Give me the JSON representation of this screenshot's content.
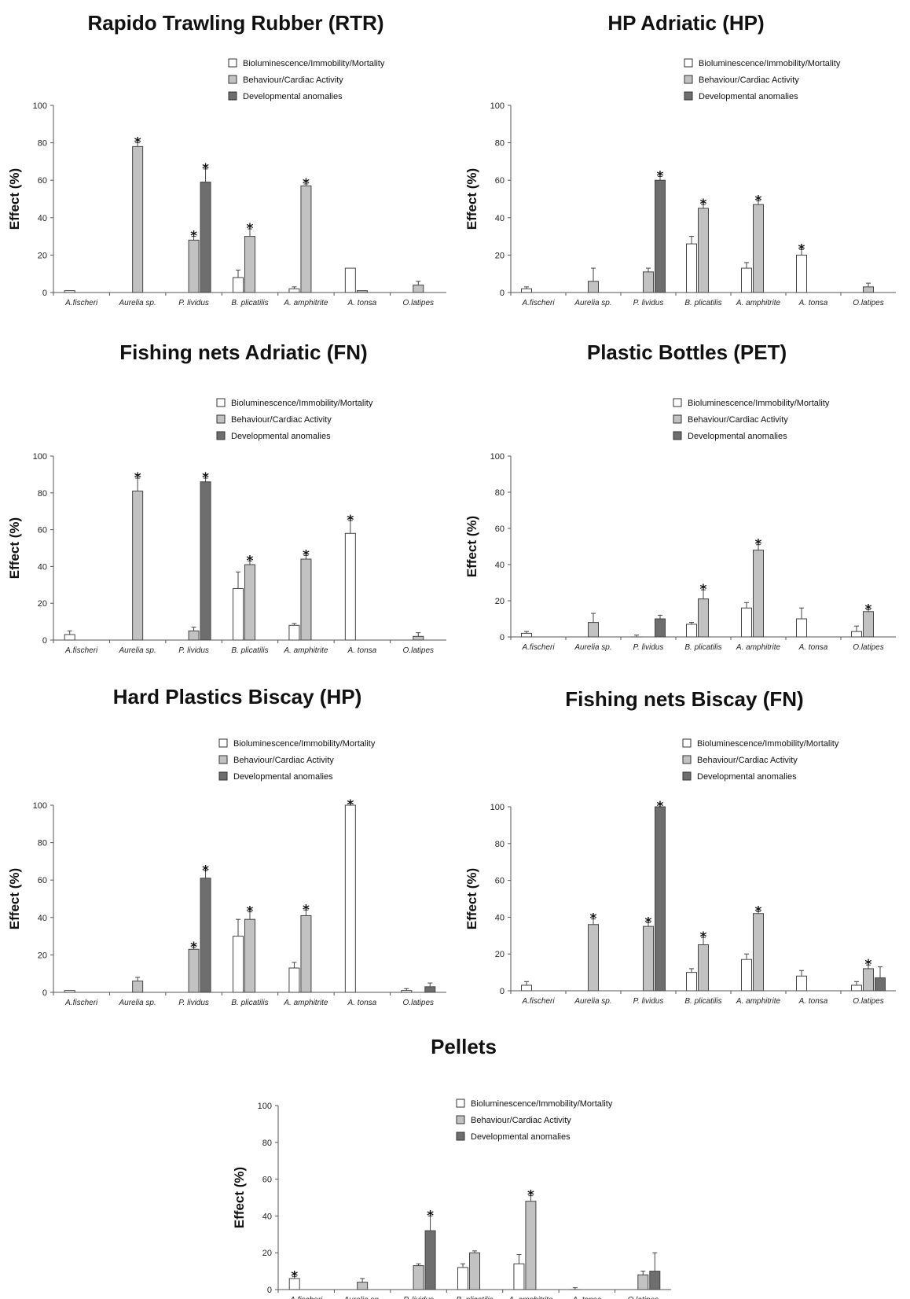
{
  "series_colors": [
    "#ffffff",
    "#c2c2c2",
    "#6e6e6e"
  ],
  "chart_data": [
    {
      "type": "bar",
      "title": "Rapido Trawling Rubber (RTR)",
      "ylabel": "Effect (%)",
      "ylim": [
        0,
        100
      ],
      "yticks": [
        0,
        20,
        40,
        60,
        80,
        100
      ],
      "legend_position": "top-right",
      "categories": [
        "A.fischeri",
        "Aurelia sp.",
        "P. lividus",
        "B. plicatilis",
        "A. amphitrite",
        "A. tonsa",
        "O.latipes"
      ],
      "series": [
        {
          "name": "Bioluminescence/Immobility/Mortality",
          "values": [
            1,
            null,
            null,
            8,
            2,
            13,
            null
          ],
          "errors": [
            0,
            null,
            null,
            4,
            1,
            0,
            null
          ],
          "sig": [
            false,
            false,
            false,
            false,
            false,
            false,
            false
          ]
        },
        {
          "name": "Behaviour/Cardiac  Activity",
          "values": [
            null,
            78,
            28,
            30,
            57,
            1,
            4
          ],
          "errors": [
            null,
            2,
            2,
            4,
            1,
            0,
            2
          ],
          "sig": [
            false,
            true,
            true,
            true,
            true,
            false,
            false
          ]
        },
        {
          "name": "Developmental anomalies",
          "values": [
            null,
            null,
            59,
            null,
            null,
            null,
            null
          ],
          "errors": [
            null,
            null,
            7,
            null,
            null,
            null,
            null
          ],
          "sig": [
            false,
            false,
            true,
            false,
            false,
            false,
            false
          ]
        }
      ]
    },
    {
      "type": "bar",
      "title": "HP Adriatic (HP)",
      "ylabel": "Effect (%)",
      "ylim": [
        0,
        100
      ],
      "yticks": [
        0,
        20,
        40,
        60,
        80,
        100
      ],
      "legend_position": "top-right",
      "categories": [
        "A.fischeri",
        "Aurelia sp.",
        "P. lividus",
        "B. plicatilis",
        "A. amphitrite",
        "A. tonsa",
        "O.latipes"
      ],
      "series": [
        {
          "name": "Bioluminescence/Immobility/Mortality",
          "values": [
            2,
            null,
            null,
            26,
            13,
            20,
            null
          ],
          "errors": [
            1,
            null,
            null,
            4,
            3,
            3,
            null
          ],
          "sig": [
            false,
            false,
            false,
            false,
            false,
            true,
            false
          ]
        },
        {
          "name": "Behaviour/Cardiac  Activity",
          "values": [
            null,
            6,
            11,
            45,
            47,
            null,
            3
          ],
          "errors": [
            null,
            7,
            2,
            2,
            2,
            null,
            2
          ],
          "sig": [
            false,
            false,
            false,
            true,
            true,
            false,
            false
          ]
        },
        {
          "name": "Developmental anomalies",
          "values": [
            null,
            null,
            60,
            null,
            null,
            null,
            null
          ],
          "errors": [
            null,
            null,
            2,
            null,
            null,
            null,
            null
          ],
          "sig": [
            false,
            false,
            true,
            false,
            false,
            false,
            false
          ]
        }
      ]
    },
    {
      "type": "bar",
      "title": "Fishing nets Adriatic (FN)",
      "ylabel": "Effect (%)",
      "ylim": [
        0,
        100
      ],
      "yticks": [
        0,
        20,
        40,
        60,
        80,
        100
      ],
      "legend_position": "top-right",
      "categories": [
        "A.fischeri",
        "Aurelia sp.",
        "P. lividus",
        "B. plicatilis",
        "A. amphitrite",
        "A. tonsa",
        "O.latipes"
      ],
      "series": [
        {
          "name": "Bioluminescence/Immobility/Mortality",
          "values": [
            3,
            null,
            null,
            28,
            8,
            58,
            null
          ],
          "errors": [
            2,
            null,
            null,
            9,
            1,
            7,
            null
          ],
          "sig": [
            false,
            false,
            false,
            false,
            false,
            true,
            false
          ]
        },
        {
          "name": "Behaviour/Cardiac  Activity",
          "values": [
            null,
            81,
            5,
            41,
            44,
            null,
            2
          ],
          "errors": [
            null,
            7,
            2,
            2,
            2,
            null,
            2
          ],
          "sig": [
            false,
            true,
            false,
            true,
            true,
            false,
            false
          ]
        },
        {
          "name": "Developmental anomalies",
          "values": [
            null,
            null,
            86,
            null,
            null,
            null,
            null
          ],
          "errors": [
            null,
            null,
            2,
            null,
            null,
            null,
            null
          ],
          "sig": [
            false,
            false,
            true,
            false,
            false,
            false,
            false
          ]
        }
      ]
    },
    {
      "type": "bar",
      "title": "Plastic Bottles (PET)",
      "ylabel": "Effect (%)",
      "ylim": [
        0,
        100
      ],
      "yticks": [
        0,
        20,
        40,
        60,
        80,
        100
      ],
      "legend_position": "top-right",
      "categories": [
        "A.fischeri",
        "Aurelia sp.",
        "P. lividus",
        "B. plicatilis",
        "A. amphitrite",
        "A. tonsa",
        "O.latipes"
      ],
      "series": [
        {
          "name": "Bioluminescence/Immobility/Mortality",
          "values": [
            2,
            null,
            0,
            7,
            16,
            10,
            3
          ],
          "errors": [
            1,
            null,
            1,
            1,
            3,
            6,
            3
          ],
          "sig": [
            false,
            false,
            false,
            false,
            false,
            false,
            false
          ]
        },
        {
          "name": "Behaviour/Cardiac  Activity",
          "values": [
            null,
            8,
            null,
            21,
            48,
            null,
            14
          ],
          "errors": [
            null,
            5,
            null,
            5,
            3,
            null,
            1
          ],
          "sig": [
            false,
            false,
            false,
            true,
            true,
            false,
            true
          ]
        },
        {
          "name": "Developmental anomalies",
          "values": [
            null,
            null,
            10,
            null,
            null,
            null,
            null
          ],
          "errors": [
            null,
            null,
            2,
            null,
            null,
            null,
            null
          ],
          "sig": [
            false,
            false,
            false,
            false,
            false,
            false,
            false
          ]
        }
      ]
    },
    {
      "type": "bar",
      "title": "Hard Plastics Biscay (HP)",
      "ylabel": "Effect (%)",
      "ylim": [
        0,
        100
      ],
      "yticks": [
        0,
        20,
        40,
        60,
        80,
        100
      ],
      "legend_position": "top-right",
      "categories": [
        "A.fischeri",
        "Aurelia sp.",
        "P. lividus",
        "B. plicatilis",
        "A. amphitrite",
        "A. tonsa",
        "O.latipes"
      ],
      "series": [
        {
          "name": "Bioluminescence/Immobility/Mortality",
          "values": [
            1,
            null,
            null,
            30,
            13,
            100,
            1
          ],
          "errors": [
            0,
            null,
            null,
            9,
            3,
            0,
            1
          ],
          "sig": [
            false,
            false,
            false,
            false,
            false,
            true,
            false
          ]
        },
        {
          "name": "Behaviour/Cardiac  Activity",
          "values": [
            null,
            6,
            23,
            39,
            41,
            null,
            null
          ],
          "errors": [
            null,
            2,
            1,
            4,
            3,
            null,
            null
          ],
          "sig": [
            false,
            false,
            true,
            true,
            true,
            false,
            false
          ]
        },
        {
          "name": "Developmental anomalies",
          "values": [
            null,
            null,
            61,
            null,
            null,
            null,
            3
          ],
          "errors": [
            null,
            null,
            4,
            null,
            null,
            null,
            2
          ],
          "sig": [
            false,
            false,
            true,
            false,
            false,
            false,
            false
          ]
        }
      ]
    },
    {
      "type": "bar",
      "title": "Fishing nets Biscay (FN)",
      "ylabel": "Effect (%)",
      "ylim": [
        0,
        100
      ],
      "yticks": [
        0,
        20,
        40,
        60,
        80,
        100
      ],
      "legend_position": "top-right",
      "categories": [
        "A.fischeri",
        "Aurelia sp.",
        "P. lividus",
        "B. plicatilis",
        "A. amphitrite",
        "A. tonsa",
        "O.latipes"
      ],
      "series": [
        {
          "name": "Bioluminescence/Immobility/Mortality",
          "values": [
            3,
            null,
            null,
            10,
            17,
            8,
            3
          ],
          "errors": [
            2,
            null,
            null,
            2,
            3,
            3,
            2
          ],
          "sig": [
            false,
            false,
            false,
            false,
            false,
            false,
            false
          ]
        },
        {
          "name": "Behaviour/Cardiac  Activity",
          "values": [
            null,
            36,
            35,
            25,
            42,
            null,
            12
          ],
          "errors": [
            null,
            3,
            2,
            4,
            1,
            null,
            2
          ],
          "sig": [
            false,
            true,
            true,
            true,
            true,
            false,
            true
          ]
        },
        {
          "name": "Developmental anomalies",
          "values": [
            null,
            null,
            100,
            null,
            null,
            null,
            7
          ],
          "errors": [
            null,
            null,
            0,
            null,
            null,
            null,
            6
          ],
          "sig": [
            false,
            false,
            true,
            false,
            false,
            false,
            false
          ]
        }
      ]
    },
    {
      "type": "bar",
      "title": "Pellets",
      "ylabel": "Effect (%)",
      "ylim": [
        0,
        100
      ],
      "yticks": [
        0,
        20,
        40,
        60,
        80,
        100
      ],
      "legend_position": "top-right",
      "categories": [
        "A.fischeri",
        "Aurelia sp.",
        "P. lividus",
        "B. plicatilis",
        "A. amphitrite",
        "A. tonsa",
        "O.latipes"
      ],
      "series": [
        {
          "name": "Bioluminescence/Immobility/Mortality",
          "values": [
            6,
            null,
            null,
            12,
            14,
            0,
            null
          ],
          "errors": [
            1,
            null,
            null,
            2,
            5,
            1,
            null
          ],
          "sig": [
            true,
            false,
            false,
            false,
            false,
            false,
            false
          ]
        },
        {
          "name": "Behaviour/Cardiac  Activity",
          "values": [
            null,
            4,
            13,
            20,
            48,
            null,
            8
          ],
          "errors": [
            null,
            2,
            1,
            1,
            3,
            null,
            2
          ],
          "sig": [
            false,
            false,
            false,
            false,
            true,
            false,
            false
          ]
        },
        {
          "name": "Developmental anomalies",
          "values": [
            null,
            null,
            32,
            null,
            null,
            null,
            10
          ],
          "errors": [
            null,
            null,
            8,
            null,
            null,
            null,
            10
          ],
          "sig": [
            false,
            false,
            true,
            false,
            false,
            false,
            false
          ]
        }
      ]
    }
  ]
}
